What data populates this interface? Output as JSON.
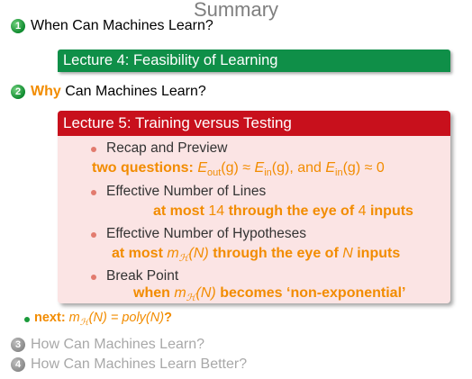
{
  "title": "Summary",
  "questions": [
    {
      "num": "1",
      "text": "When Can Machines Learn?"
    },
    {
      "num": "2",
      "why": "Why",
      "text": " Can Machines Learn?"
    },
    {
      "num": "3",
      "text": "How Can Machines Learn?"
    },
    {
      "num": "4",
      "text": "How Can Machines Learn Better?"
    }
  ],
  "lecture4": "Lecture 4: Feasibility of Learning",
  "lecture5": {
    "title": "Lecture 5: Training versus Testing",
    "items": [
      "Recap and Preview",
      "Effective Number of Lines",
      "Effective Number of Hypotheses",
      "Break Point"
    ],
    "h1": {
      "a": "two questions: ",
      "e1": "E",
      "s1": "out",
      "p1": "(g) ≈ ",
      "e2": "E",
      "s2": "in",
      "p2": "(g), and ",
      "e3": "E",
      "s3": "in",
      "p3": "(g) ≈ 0"
    },
    "h2": {
      "a": "at most ",
      "n1": "14",
      "b": " through the eye of ",
      "n2": "4",
      "c": " inputs"
    },
    "h3": {
      "a": "at most ",
      "m": "m",
      "sub": "ℋ",
      "m2": "(N)",
      "b": " through the eye of ",
      "n": "N",
      "c": " inputs"
    },
    "h4": {
      "a": "when ",
      "m": "m",
      "sub": "ℋ",
      "m2": "(N)",
      "b": " becomes ‘non-exponential’"
    }
  },
  "next": {
    "a": "next: ",
    "m": "m",
    "sub": "ℋ",
    "m2": "(N) = ",
    "p": "poly",
    "p2": "(N)",
    "q": "?"
  }
}
